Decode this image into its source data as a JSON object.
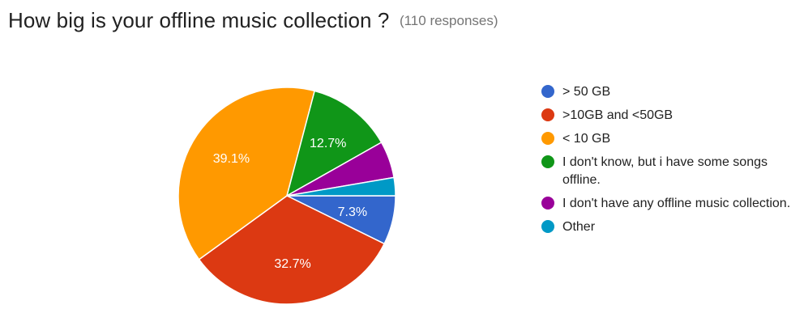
{
  "header": {
    "title": "How big is your offline music collection ?",
    "responses": "(110 responses)"
  },
  "chart_data": {
    "type": "pie",
    "title": "How big is your offline music collection ?",
    "labels": [
      "> 50 GB",
      ">10GB and <50GB",
      "< 10 GB",
      "I don't know, but i have some songs offline.",
      "I don't have any offline music collection.",
      "Other"
    ],
    "values": [
      7.3,
      32.7,
      39.1,
      12.7,
      5.5,
      2.7
    ],
    "value_labels": [
      "7.3%",
      "32.7%",
      "39.1%",
      "12.7%",
      "",
      ""
    ],
    "colors": [
      "#3366cc",
      "#dc3912",
      "#ff9900",
      "#109618",
      "#990099",
      "#0099c6"
    ],
    "legend_position": "right"
  }
}
